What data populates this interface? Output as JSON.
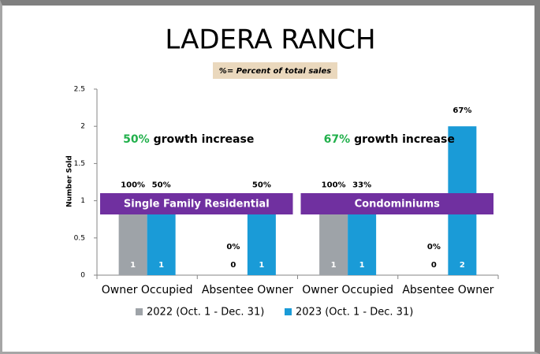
{
  "chart_data": {
    "type": "bar",
    "title": "LADERA RANCH",
    "subtitle": "%= Percent of total sales",
    "y_label": "Number Sold",
    "categories": [
      "Owner Occupied",
      "Absentee Owner",
      "Owner Occupied",
      "Absentee Owner"
    ],
    "series": [
      {
        "name": "2022 (Oct. 1 - Dec. 31)",
        "color": "#9ea3a8",
        "values": [
          1,
          0,
          1,
          0
        ],
        "percent_labels": [
          "100%",
          "0%",
          "100%",
          "0%"
        ]
      },
      {
        "name": "2023 (Oct. 1 - Dec. 31)",
        "color": "#1a9bd7",
        "values": [
          1,
          1,
          1,
          2
        ],
        "percent_labels": [
          "50%",
          "50%",
          "33%",
          "67%"
        ]
      }
    ],
    "groups": [
      {
        "label": "Single Family Residential",
        "highlight": "50%",
        "text": "growth increase"
      },
      {
        "label": "Condominiums",
        "highlight": "67%",
        "text": "growth increase"
      }
    ],
    "ylim": [
      0,
      2.5
    ],
    "yticks": [
      0,
      0.5,
      1,
      1.5,
      2,
      2.5
    ],
    "group_color": "#7030a0",
    "highlight_color": "#21b04b"
  }
}
